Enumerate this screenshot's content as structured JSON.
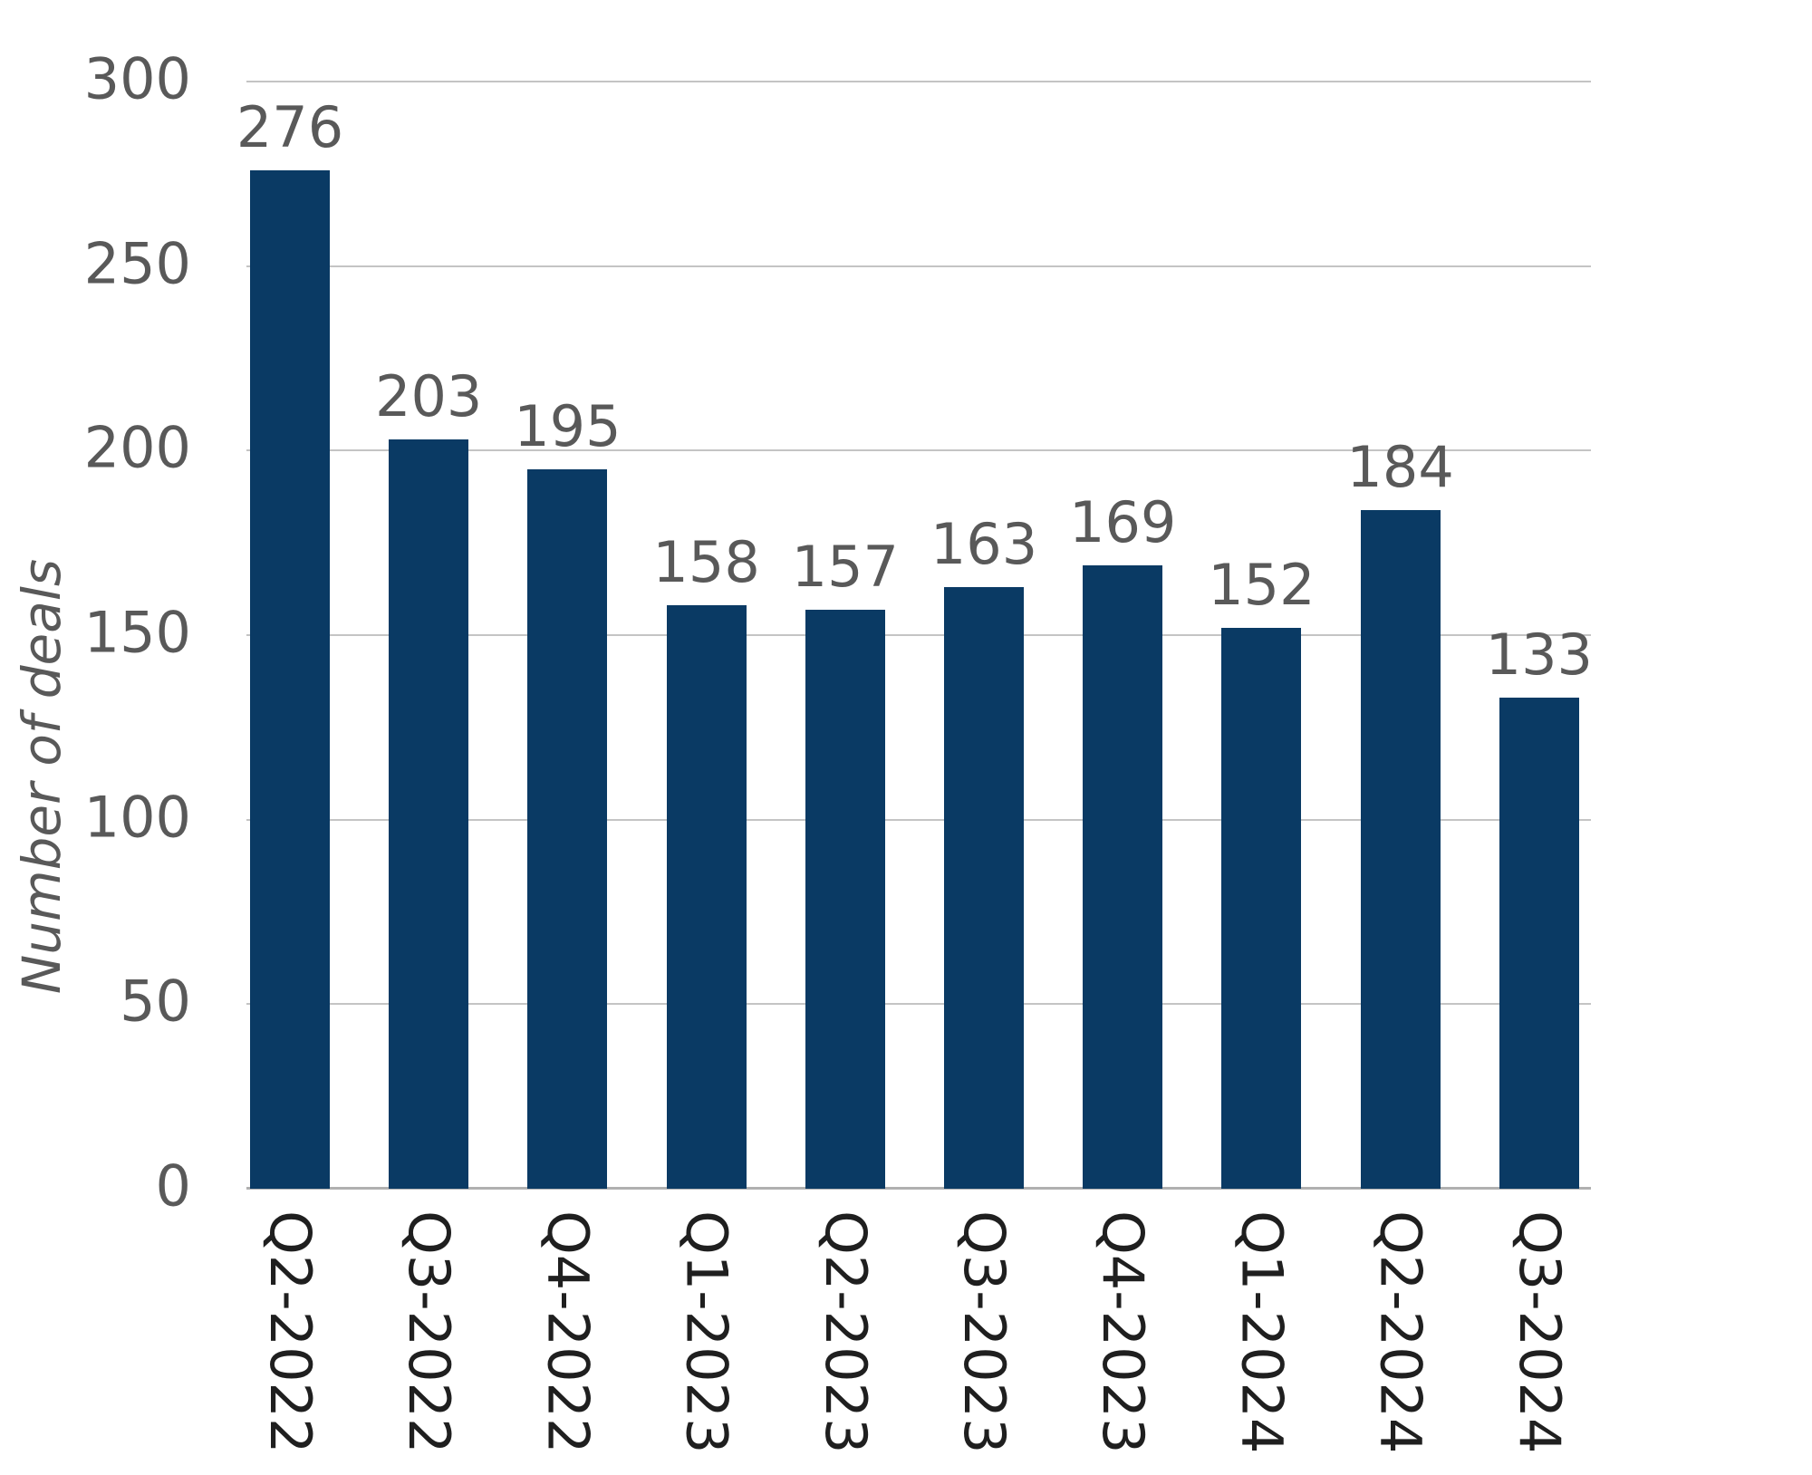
{
  "chart_data": {
    "type": "bar",
    "title": "",
    "categories": [
      "Q2-2022",
      "Q3-2022",
      "Q4-2022",
      "Q1-2023",
      "Q2-2023",
      "Q3-2023",
      "Q4-2023",
      "Q1-2024",
      "Q2-2024",
      "Q3-2024"
    ],
    "values": [
      276,
      203,
      195,
      158,
      157,
      163,
      169,
      152,
      184,
      133
    ],
    "xlabel": "",
    "ylabel": "Number of deals",
    "ylim": [
      0,
      300
    ],
    "yticks": [
      0,
      50,
      100,
      150,
      200,
      250,
      300
    ],
    "grid": true,
    "legend": false,
    "data_labels": true,
    "colors": {
      "bar": "#0a3a64",
      "gridline": "#c4c4c4",
      "axis_line": "#b0b0b0",
      "tick_label": "#595959",
      "data_label": "#595959",
      "x_label": "#1f1f1f",
      "axis_title": "#595959",
      "background": "#ffffff"
    }
  }
}
